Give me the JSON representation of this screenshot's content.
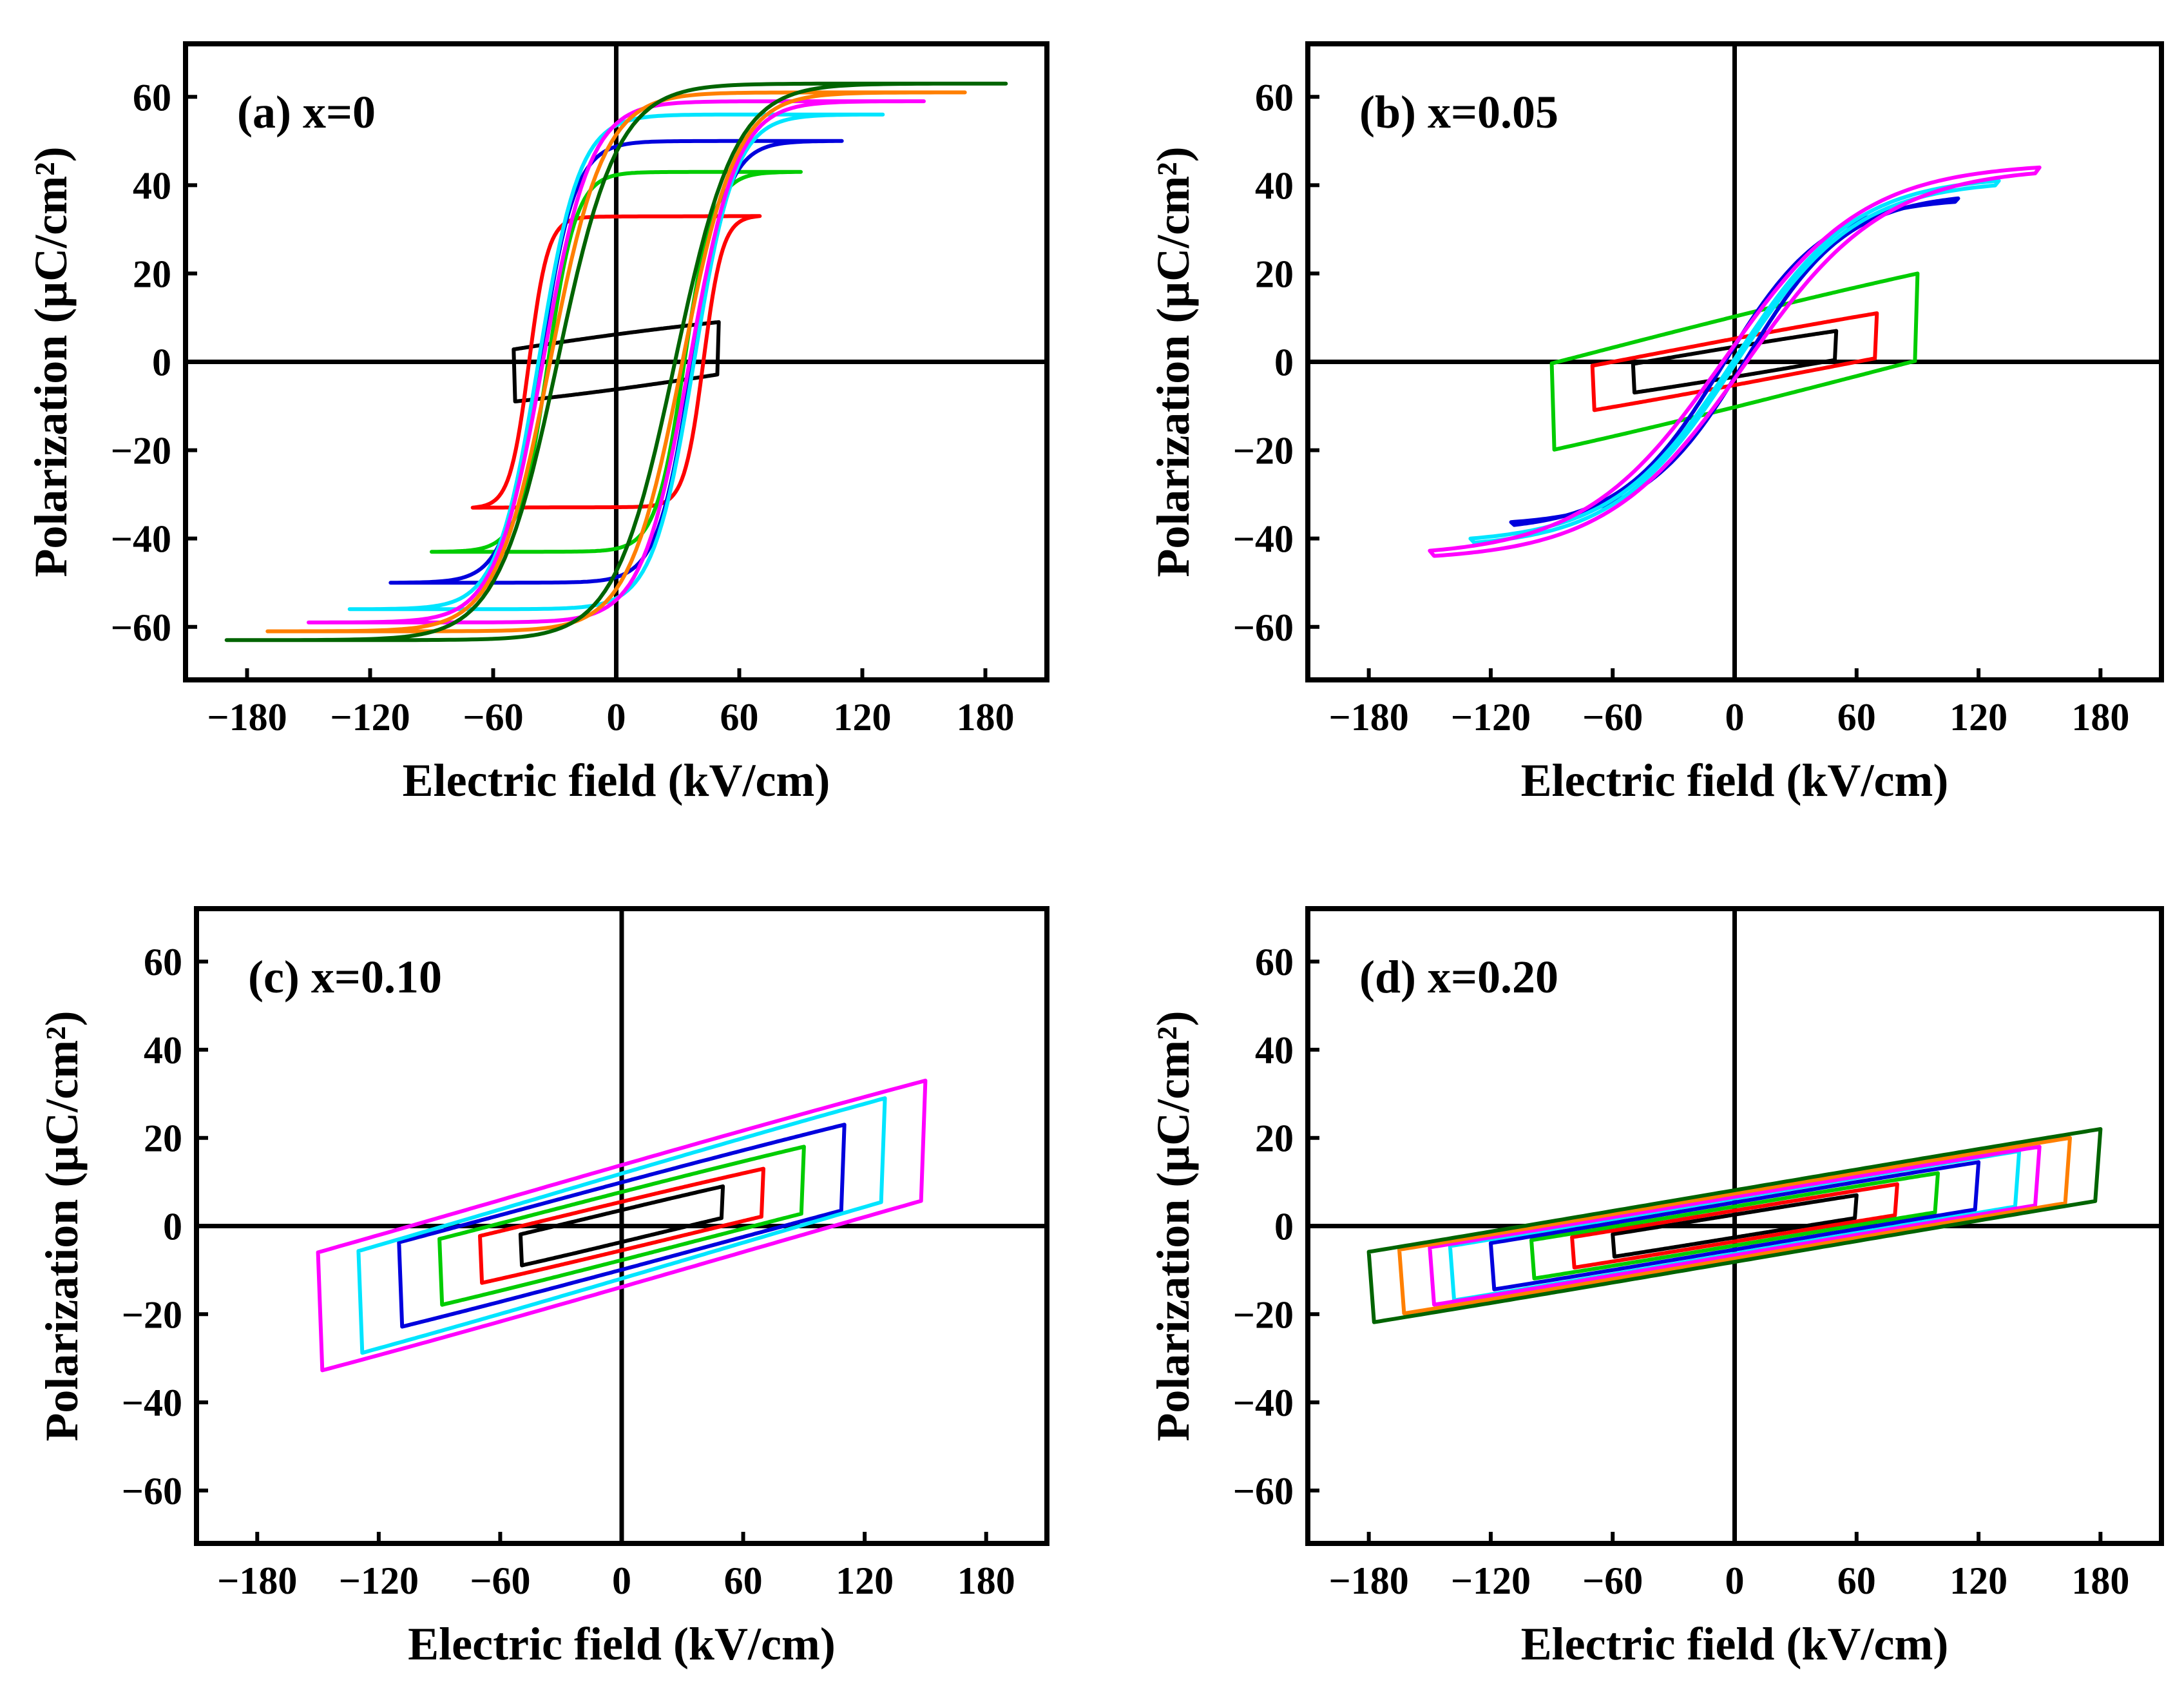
{
  "chart_data": [
    {
      "type": "line",
      "panel_label": "(a) x=0",
      "xlabel": "Electric field (kV/cm)",
      "ylabel": "Polarization (μC/cm²)",
      "xlim": [
        -210,
        210
      ],
      "ylim": [
        -72,
        72
      ],
      "xticks": [
        -180,
        -120,
        -60,
        0,
        60,
        120,
        180
      ],
      "yticks": [
        -60,
        -40,
        -20,
        0,
        20,
        40,
        60
      ],
      "xtick_labels": [
        "−180",
        "−120",
        "−60",
        "0",
        "60",
        "120",
        "180"
      ],
      "ytick_labels": [
        "−60",
        "−40",
        "−20",
        "0",
        "20",
        "40",
        "60"
      ],
      "grid": false,
      "series": [
        {
          "color": "#000000",
          "type": "loop",
          "emax": 50,
          "pmax": 9,
          "pr": 6,
          "ec": 30,
          "sharp": 0.3
        },
        {
          "color": "#ff0000",
          "type": "loop",
          "emax": 70,
          "pmax": 33,
          "pr": 32,
          "ec": 62,
          "sharp": 7.5
        },
        {
          "color": "#00cc00",
          "type": "loop",
          "emax": 90,
          "pmax": 43,
          "pr": 42,
          "ec": 64,
          "sharp": 6.5
        },
        {
          "color": "#0000dd",
          "type": "loop",
          "emax": 110,
          "pmax": 50,
          "pr": 46,
          "ec": 64,
          "sharp": 6.5
        },
        {
          "color": "#00e5ff",
          "type": "loop",
          "emax": 130,
          "pmax": 56,
          "pr": 49,
          "ec": 65,
          "sharp": 6.5
        },
        {
          "color": "#ff00ff",
          "type": "loop",
          "emax": 150,
          "pmax": 59,
          "pr": 51,
          "ec": 66,
          "sharp": 6.5
        },
        {
          "color": "#ff7f00",
          "type": "loop",
          "emax": 170,
          "pmax": 61,
          "pr": 53,
          "ec": 67,
          "sharp": 6.5
        },
        {
          "color": "#006400",
          "type": "loop",
          "emax": 190,
          "pmax": 63,
          "pr": 55,
          "ec": 68,
          "sharp": 6.5
        }
      ]
    },
    {
      "type": "line",
      "panel_label": "(b) x=0.05",
      "xlabel": "Electric field (kV/cm)",
      "ylabel": "Polarization (μC/cm²)",
      "xlim": [
        -210,
        210
      ],
      "ylim": [
        -72,
        72
      ],
      "xticks": [
        -180,
        -120,
        -60,
        0,
        60,
        120,
        180
      ],
      "yticks": [
        -60,
        -40,
        -20,
        0,
        20,
        40,
        60
      ],
      "xtick_labels": [
        "−180",
        "−120",
        "−60",
        "0",
        "60",
        "120",
        "180"
      ],
      "ytick_labels": [
        "−60",
        "−40",
        "−20",
        "0",
        "20",
        "40",
        "60"
      ],
      "grid": false,
      "series": [
        {
          "color": "#000000",
          "type": "loop",
          "emax": 50,
          "pmax": 7,
          "pr": 2,
          "ec": 10,
          "sharp": 0.3
        },
        {
          "color": "#ff0000",
          "type": "loop",
          "emax": 70,
          "pmax": 11,
          "pr": 3,
          "ec": 14,
          "sharp": 0.3
        },
        {
          "color": "#00cc00",
          "type": "loop",
          "emax": 90,
          "pmax": 20,
          "pr": 7,
          "ec": 25,
          "sharp": 0.3
        },
        {
          "color": "#0000dd",
          "type": "loop",
          "emax": 110,
          "pmax": 37,
          "pr": 23,
          "ec": 42,
          "sharp": 2.2
        },
        {
          "color": "#00e5ff",
          "type": "loop",
          "emax": 130,
          "pmax": 41,
          "pr": 26,
          "ec": 44,
          "sharp": 2.2
        },
        {
          "color": "#ff00ff",
          "type": "loop",
          "emax": 150,
          "pmax": 44,
          "pr": 28,
          "ec": 46,
          "sharp": 2.2
        }
      ]
    },
    {
      "type": "line",
      "panel_label": "(c) x=0.10",
      "xlabel": "Electric field (kV/cm)",
      "ylabel": "Polarization (μC/cm²)",
      "xlim": [
        -210,
        210
      ],
      "ylim": [
        -72,
        72
      ],
      "xticks": [
        -180,
        -120,
        -60,
        0,
        60,
        120,
        180
      ],
      "yticks": [
        -60,
        -40,
        -20,
        0,
        20,
        40,
        60
      ],
      "xtick_labels": [
        "−180",
        "−120",
        "−60",
        "0",
        "60",
        "120",
        "180"
      ],
      "ytick_labels": [
        "−60",
        "−40",
        "−20",
        "0",
        "20",
        "40",
        "60"
      ],
      "grid": false,
      "series": [
        {
          "color": "#000000",
          "type": "loop",
          "emax": 50,
          "pmax": 9,
          "pr": 1,
          "ec": 4,
          "sharp": 0.3
        },
        {
          "color": "#ff0000",
          "type": "loop",
          "emax": 70,
          "pmax": 13,
          "pr": 2,
          "ec": 7,
          "sharp": 0.3
        },
        {
          "color": "#00cc00",
          "type": "loop",
          "emax": 90,
          "pmax": 18,
          "pr": 3,
          "ec": 10,
          "sharp": 0.3
        },
        {
          "color": "#0000dd",
          "type": "loop",
          "emax": 110,
          "pmax": 23,
          "pr": 4,
          "ec": 14,
          "sharp": 0.3
        },
        {
          "color": "#00e5ff",
          "type": "loop",
          "emax": 130,
          "pmax": 29,
          "pr": 4,
          "ec": 16,
          "sharp": 0.3
        },
        {
          "color": "#ff00ff",
          "type": "loop",
          "emax": 150,
          "pmax": 33,
          "pr": 5,
          "ec": 18,
          "sharp": 0.3
        }
      ]
    },
    {
      "type": "line",
      "panel_label": "(d) x=0.20",
      "xlabel": "Electric field (kV/cm)",
      "ylabel": "Polarization (μC/cm²)",
      "xlim": [
        -210,
        210
      ],
      "ylim": [
        -72,
        72
      ],
      "xticks": [
        -180,
        -120,
        -60,
        0,
        60,
        120,
        180
      ],
      "yticks": [
        -60,
        -40,
        -20,
        0,
        20,
        40,
        60
      ],
      "xtick_labels": [
        "−180",
        "−120",
        "−60",
        "0",
        "60",
        "120",
        "180"
      ],
      "ytick_labels": [
        "−60",
        "−40",
        "−20",
        "0",
        "20",
        "40",
        "60"
      ],
      "grid": false,
      "series": [
        {
          "color": "#000000",
          "type": "loop",
          "emax": 60,
          "pmax": 7,
          "pr": 0.3,
          "ec": 3,
          "sharp": 0.3
        },
        {
          "color": "#ff0000",
          "type": "loop",
          "emax": 80,
          "pmax": 9.5,
          "pr": 0.4,
          "ec": 4,
          "sharp": 0.3
        },
        {
          "color": "#00cc00",
          "type": "loop",
          "emax": 100,
          "pmax": 12,
          "pr": 0.5,
          "ec": 5,
          "sharp": 0.3
        },
        {
          "color": "#0000dd",
          "type": "loop",
          "emax": 120,
          "pmax": 14.5,
          "pr": 0.6,
          "ec": 6,
          "sharp": 0.3
        },
        {
          "color": "#00e5ff",
          "type": "loop",
          "emax": 140,
          "pmax": 17,
          "pr": 0.7,
          "ec": 7,
          "sharp": 0.3
        },
        {
          "color": "#ff00ff",
          "type": "loop",
          "emax": 150,
          "pmax": 18,
          "pr": 0.7,
          "ec": 7,
          "sharp": 0.3
        },
        {
          "color": "#ff7f00",
          "type": "loop",
          "emax": 165,
          "pmax": 20,
          "pr": 0.8,
          "ec": 8,
          "sharp": 0.3
        },
        {
          "color": "#006400",
          "type": "loop",
          "emax": 180,
          "pmax": 22,
          "pr": 0.9,
          "ec": 8,
          "sharp": 0.3
        }
      ]
    }
  ]
}
